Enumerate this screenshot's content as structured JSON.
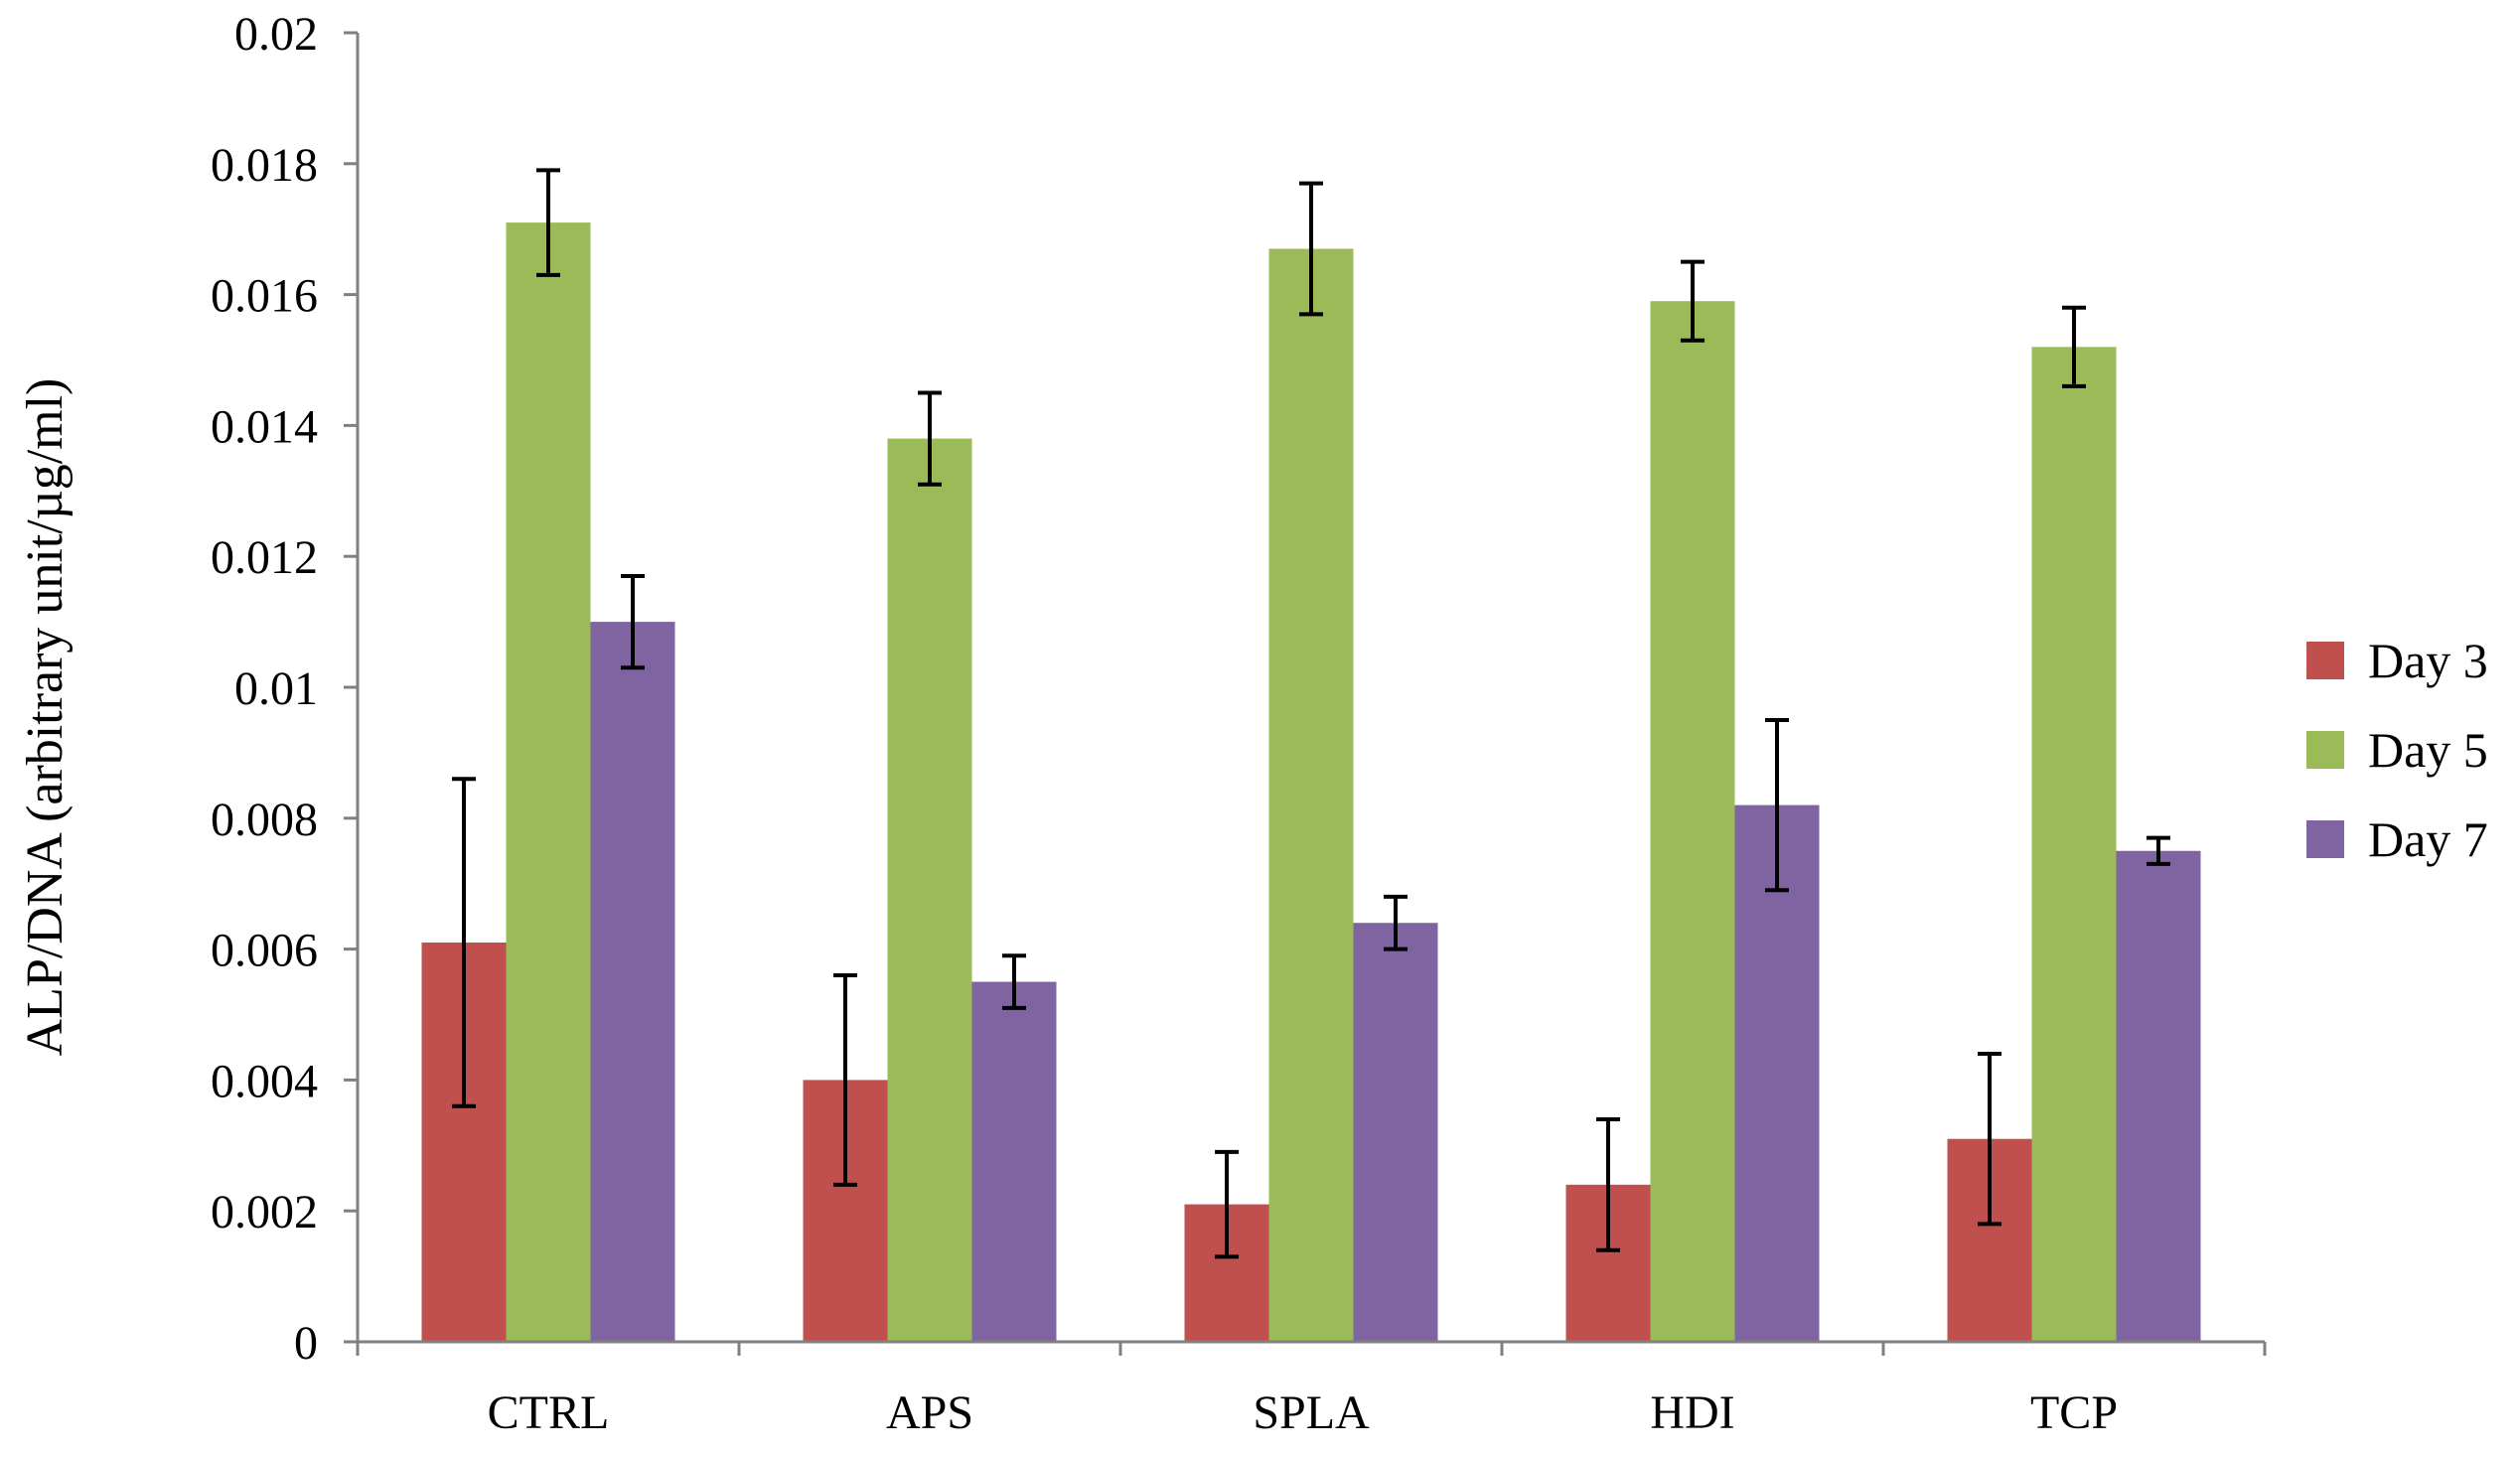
{
  "chart_data": {
    "type": "bar",
    "title": "",
    "xlabel": "",
    "ylabel": "ALP/DNA (arbitrary unit/µg/ml)",
    "ylim": [
      0,
      0.02
    ],
    "yticks": [
      "0",
      "0.002",
      "0.004",
      "0.006",
      "0.008",
      "0.01",
      "0.012",
      "0.014",
      "0.016",
      "0.018",
      "0.02"
    ],
    "yticks_values": [
      0,
      0.002,
      0.004,
      0.006,
      0.008,
      0.01,
      0.012,
      0.014,
      0.016,
      0.018,
      0.02
    ],
    "grid": false,
    "legend_position": "right",
    "categories": [
      "CTRL",
      "APS",
      "SPLA",
      "HDI",
      "TCP"
    ],
    "series": [
      {
        "name": "Day 3",
        "color": "#c0504d",
        "values": [
          0.0061,
          0.004,
          0.0021,
          0.0024,
          0.0031
        ],
        "errors": [
          0.0025,
          0.0016,
          0.0008,
          0.001,
          0.0013
        ]
      },
      {
        "name": "Day 5",
        "color": "#9bbb59",
        "values": [
          0.0171,
          0.0138,
          0.0167,
          0.0159,
          0.0152
        ],
        "errors": [
          0.0008,
          0.0007,
          0.001,
          0.0006,
          0.0006
        ]
      },
      {
        "name": "Day 7",
        "color": "#8064a2",
        "values": [
          0.011,
          0.0055,
          0.0064,
          0.0082,
          0.0075
        ],
        "errors": [
          0.0007,
          0.0004,
          0.0004,
          0.0013,
          0.0002
        ]
      }
    ]
  }
}
